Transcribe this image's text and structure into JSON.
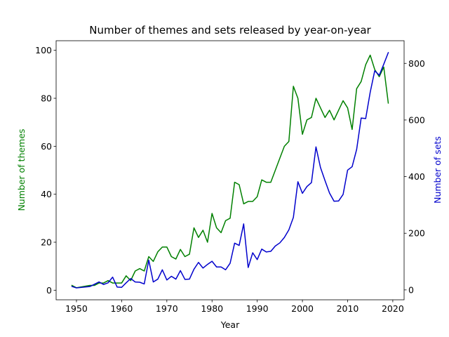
{
  "chart_data": {
    "type": "line",
    "title": "Number of themes and sets released by year-on-year",
    "xlabel": "Year",
    "ylabel_left": "Number of themes",
    "ylabel_right": "Number of sets",
    "xlim": [
      1945.5,
      2022.5
    ],
    "ylim_left": [
      -4,
      104
    ],
    "ylim_right": [
      -35,
      880
    ],
    "xticks": [
      1950,
      1960,
      1970,
      1980,
      1990,
      2000,
      2010,
      2020
    ],
    "yticks_left": [
      0,
      20,
      40,
      60,
      80,
      100
    ],
    "yticks_right": [
      0,
      200,
      400,
      600,
      800
    ],
    "grid": false,
    "x": [
      1949,
      1950,
      1953,
      1954,
      1955,
      1956,
      1957,
      1958,
      1959,
      1960,
      1961,
      1962,
      1963,
      1964,
      1965,
      1966,
      1967,
      1968,
      1969,
      1970,
      1971,
      1972,
      1973,
      1974,
      1975,
      1976,
      1977,
      1978,
      1979,
      1980,
      1981,
      1982,
      1983,
      1984,
      1985,
      1986,
      1987,
      1988,
      1989,
      1990,
      1991,
      1992,
      1993,
      1994,
      1995,
      1996,
      1997,
      1998,
      1999,
      2000,
      2001,
      2002,
      2003,
      2004,
      2005,
      2006,
      2007,
      2008,
      2009,
      2010,
      2011,
      2012,
      2013,
      2014,
      2015,
      2016,
      2017,
      2018,
      2019
    ],
    "series": [
      {
        "name": "Number of themes",
        "axis": "left",
        "color": "#008000",
        "values": [
          2,
          1,
          2,
          2,
          3,
          3,
          4,
          3,
          3,
          3,
          6,
          4,
          8,
          9,
          8,
          14,
          12,
          16,
          18,
          18,
          14,
          13,
          17,
          14,
          15,
          26,
          22,
          25,
          20,
          32,
          26,
          24,
          29,
          30,
          45,
          44,
          36,
          37,
          37,
          39,
          46,
          45,
          45,
          50,
          55,
          60,
          62,
          85,
          80,
          65,
          71,
          72,
          80,
          76,
          72,
          75,
          71,
          75,
          79,
          76,
          67,
          84,
          87,
          94,
          98,
          92,
          89,
          93,
          78
        ]
      },
      {
        "name": "Number of sets",
        "axis": "right",
        "color": "#0000cc",
        "values": [
          12,
          7,
          12,
          20,
          28,
          19,
          25,
          45,
          10,
          9,
          25,
          40,
          28,
          27,
          21,
          105,
          28,
          38,
          71,
          35,
          48,
          38,
          68,
          37,
          38,
          73,
          97,
          77,
          90,
          101,
          81,
          81,
          71,
          94,
          165,
          157,
          233,
          79,
          131,
          107,
          144,
          134,
          136,
          155,
          166,
          185,
          212,
          256,
          382,
          341,
          365,
          379,
          505,
          432,
          386,
          342,
          313,
          314,
          337,
          423,
          435,
          496,
          607,
          605,
          698,
          774,
          758,
          797,
          838
        ]
      }
    ]
  }
}
